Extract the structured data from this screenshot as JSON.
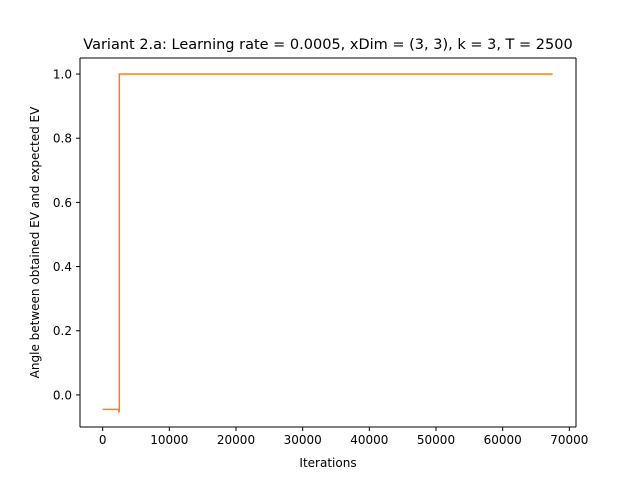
{
  "chart_data": {
    "type": "line",
    "title": "Variant 2.a: Learning rate = 0.0005, xDim = (3, 3), k = 3, T = 2500",
    "xlabel": "Iterations",
    "ylabel": "Angle between obtained EV and expected EV",
    "xlim": [
      -3400,
      71000
    ],
    "ylim": [
      -0.1,
      1.05
    ],
    "xticks": [
      0,
      10000,
      20000,
      30000,
      40000,
      50000,
      60000,
      70000
    ],
    "xtick_labels": [
      "0",
      "10000",
      "20000",
      "30000",
      "40000",
      "50000",
      "60000",
      "70000"
    ],
    "yticks": [
      0.0,
      0.2,
      0.4,
      0.6,
      0.8,
      1.0
    ],
    "ytick_labels": [
      "0.0",
      "0.2",
      "0.4",
      "0.6",
      "0.8",
      "1.0"
    ],
    "grid": false,
    "series": [
      {
        "color": "#ff7f0e",
        "x": [
          0,
          2400,
          2450,
          2500,
          2500,
          67500
        ],
        "y": [
          -0.045,
          -0.045,
          -0.055,
          -0.045,
          1.0,
          1.0
        ]
      }
    ]
  }
}
